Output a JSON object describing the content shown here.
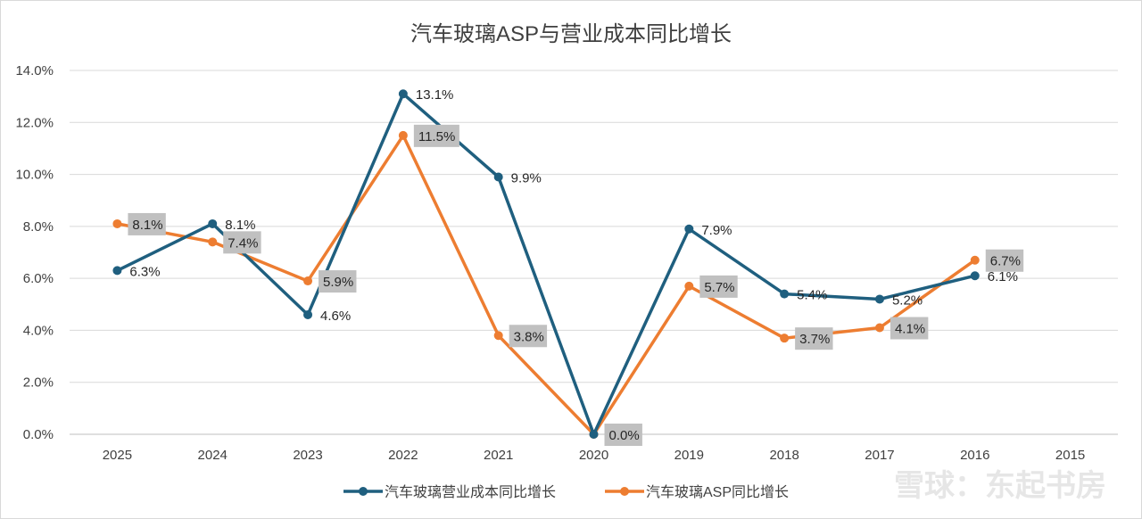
{
  "chart_data": {
    "type": "line",
    "title": "汽车玻璃ASP与营业成本同比增长",
    "categories": [
      "2025",
      "2024",
      "2023",
      "2022",
      "2021",
      "2020",
      "2019",
      "2018",
      "2017",
      "2016",
      "2015"
    ],
    "ylim": [
      0,
      0.14
    ],
    "yticks": [
      0,
      0.02,
      0.04,
      0.06,
      0.08,
      0.1,
      0.12,
      0.14
    ],
    "ytick_labels": [
      "0.0%",
      "2.0%",
      "4.0%",
      "6.0%",
      "8.0%",
      "10.0%",
      "12.0%",
      "14.0%"
    ],
    "grid": true,
    "legend_position": "bottom",
    "series": [
      {
        "name": "汽车玻璃营业成本同比增长",
        "color": "#1f5f7f",
        "values": [
          0.063,
          0.081,
          0.046,
          0.131,
          0.099,
          0.0,
          0.079,
          0.054,
          0.052,
          0.061,
          null
        ],
        "labels": [
          "6.3%",
          "8.1%",
          "4.6%",
          "13.1%",
          "9.9%",
          "",
          "7.9%",
          "5.4%",
          "5.2%",
          "6.1%",
          ""
        ]
      },
      {
        "name": "汽车玻璃ASP同比增长",
        "color": "#ed7d31",
        "values": [
          0.081,
          0.074,
          0.059,
          0.115,
          0.038,
          0.0,
          0.057,
          0.037,
          0.041,
          0.067,
          null
        ],
        "labels": [
          "8.1%",
          "7.4%",
          "5.9%",
          "11.5%",
          "3.8%",
          "0.0%",
          "5.7%",
          "3.7%",
          "4.1%",
          "6.7%",
          ""
        ]
      }
    ]
  },
  "watermark": "雪球：东起书房"
}
